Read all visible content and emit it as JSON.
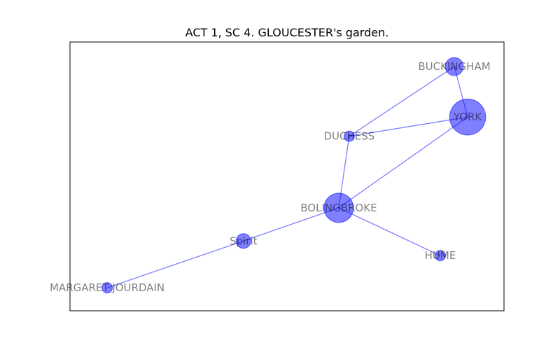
{
  "title": "ACT 1, SC 4. GLOUCESTER's garden.",
  "colors": {
    "node": "#0000ff",
    "edge": "#0000ff",
    "label": "#000000"
  },
  "chart_data": {
    "type": "network",
    "nodes": [
      {
        "id": "BUCKINGHAM",
        "label": "BUCKINGHAM",
        "x": 0.8855,
        "y": 0.9087,
        "weight": 3
      },
      {
        "id": "YORK",
        "label": "YORK",
        "x": 0.9162,
        "y": 0.7208,
        "weight": 12
      },
      {
        "id": "DUCHESS",
        "label": "DUCHESS",
        "x": 0.6434,
        "y": 0.6494,
        "weight": 1
      },
      {
        "id": "BOLINGBROKE",
        "label": "BOLINGBROKE",
        "x": 0.6192,
        "y": 0.3831,
        "weight": 8
      },
      {
        "id": "Spirit",
        "label": "Spirit",
        "x": 0.3997,
        "y": 0.2597,
        "weight": 2
      },
      {
        "id": "HUME",
        "label": "HUME",
        "x": 0.8532,
        "y": 0.2052,
        "weight": 1
      },
      {
        "id": "MARGARET JOURDAIN",
        "label": "MARGARET JOURDAIN",
        "x": 0.0856,
        "y": 0.0857,
        "weight": 1
      }
    ],
    "edges": [
      [
        "BUCKINGHAM",
        "YORK"
      ],
      [
        "BUCKINGHAM",
        "DUCHESS"
      ],
      [
        "DUCHESS",
        "YORK"
      ],
      [
        "DUCHESS",
        "BOLINGBROKE"
      ],
      [
        "YORK",
        "BOLINGBROKE"
      ],
      [
        "BOLINGBROKE",
        "Spirit"
      ],
      [
        "BOLINGBROKE",
        "HUME"
      ],
      [
        "Spirit",
        "MARGARET JOURDAIN"
      ]
    ]
  }
}
